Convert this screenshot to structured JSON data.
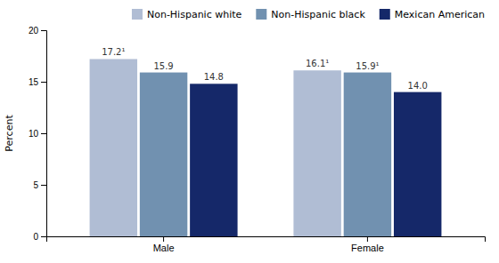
{
  "chart_data": {
    "type": "bar",
    "categories": [
      "Male",
      "Female"
    ],
    "series": [
      {
        "name": "Non-Hispanic white",
        "color": "#b0bdd4",
        "values": [
          17.2,
          16.1
        ],
        "value_labels": [
          "17.2¹",
          "16.1¹"
        ]
      },
      {
        "name": "Non-Hispanic black",
        "color": "#7191b0",
        "values": [
          15.9,
          15.9
        ],
        "value_labels": [
          "15.9",
          "15.9¹"
        ]
      },
      {
        "name": "Mexican American",
        "color": "#152869",
        "values": [
          14.8,
          14.0
        ],
        "value_labels": [
          "14.8",
          "14.0"
        ]
      }
    ],
    "ylabel": "Percent",
    "ylim": [
      0,
      20
    ],
    "yticks": [
      0,
      5,
      10,
      15,
      20
    ],
    "grid": false,
    "legend": "upper right",
    "data_labels": true
  }
}
